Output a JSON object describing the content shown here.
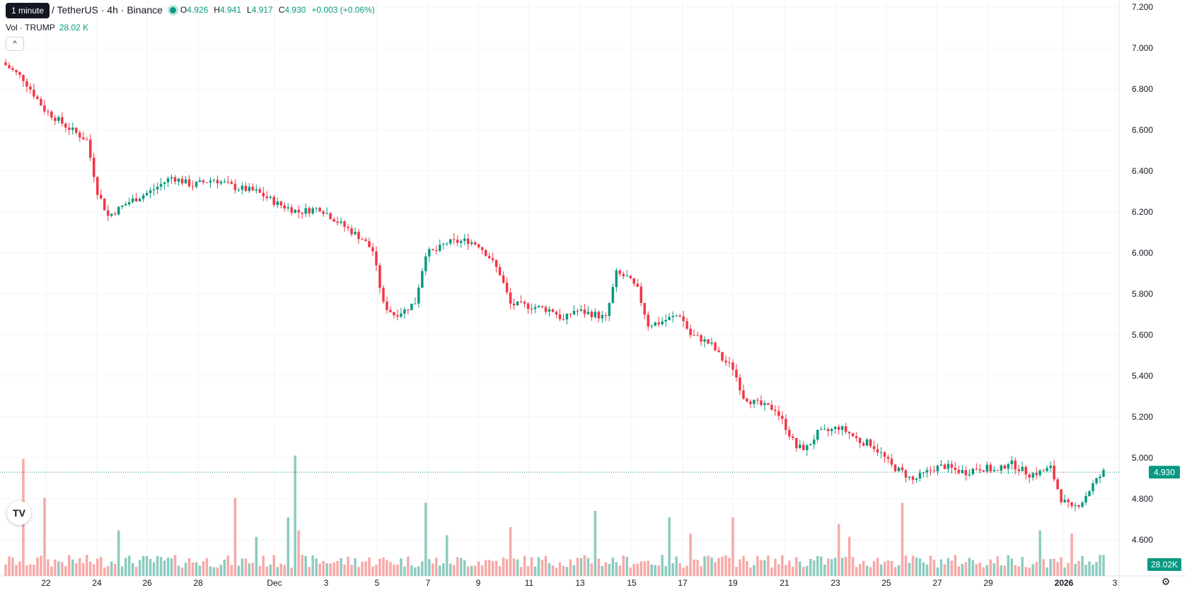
{
  "legend": {
    "symbol_visible": "P / TetherUS · 4h · Binance",
    "open_label": "O",
    "open": "4.926",
    "high_label": "H",
    "high": "4.941",
    "low_label": "L",
    "low": "4.917",
    "close_label": "C",
    "close": "4.930",
    "change": "+0.003 (+0.06%)"
  },
  "tooltip": "1 minute",
  "volume_legend": {
    "label": "Vol · TRUMP",
    "value": "28.02 K"
  },
  "collapse_icon": "chevron-up-icon",
  "logo": "TV",
  "settings_icon": "gear-icon",
  "colors": {
    "up": "#089981",
    "down": "#f23645",
    "up_vol": "#8ccbc0",
    "down_vol": "#f7a9a7",
    "grid": "#f0f3fa"
  },
  "chart_data": {
    "type": "candlestick",
    "y_ticks": [
      "7.200",
      "7.000",
      "6.800",
      "6.600",
      "6.400",
      "6.200",
      "6.000",
      "5.800",
      "5.600",
      "5.400",
      "5.200",
      "5.000",
      "4.800",
      "4.600"
    ],
    "y_range": [
      4.5,
      7.2
    ],
    "x_ticks": [
      "22",
      "24",
      "26",
      "28",
      "Dec",
      "3",
      "5",
      "7",
      "9",
      "11",
      "13",
      "15",
      "17",
      "19",
      "21",
      "23",
      "25",
      "27",
      "29",
      "2026",
      "3"
    ],
    "last_price_label": "4.930",
    "volume_label": "28.02K",
    "path": [
      [
        0,
        6.93
      ],
      [
        2,
        6.85
      ],
      [
        4,
        6.7
      ],
      [
        6,
        6.62
      ],
      [
        8,
        6.55
      ],
      [
        9,
        6.3
      ],
      [
        10,
        6.18
      ],
      [
        12,
        6.25
      ],
      [
        14,
        6.3
      ],
      [
        16,
        6.37
      ],
      [
        18,
        6.33
      ],
      [
        20,
        6.36
      ],
      [
        22,
        6.32
      ],
      [
        24,
        6.3
      ],
      [
        26,
        6.24
      ],
      [
        28,
        6.2
      ],
      [
        30,
        6.22
      ],
      [
        32,
        6.14
      ],
      [
        34,
        6.07
      ],
      [
        35,
        6.01
      ],
      [
        36,
        5.75
      ],
      [
        37,
        5.7
      ],
      [
        38,
        5.72
      ],
      [
        39,
        5.76
      ],
      [
        40,
        6.0
      ],
      [
        41,
        6.01
      ],
      [
        42,
        6.05
      ],
      [
        44,
        6.06
      ],
      [
        45,
        6.04
      ],
      [
        46,
        5.98
      ],
      [
        47,
        5.9
      ],
      [
        48,
        5.75
      ],
      [
        50,
        5.74
      ],
      [
        52,
        5.72
      ],
      [
        53,
        5.67
      ],
      [
        54,
        5.72
      ],
      [
        56,
        5.7
      ],
      [
        57,
        5.68
      ],
      [
        58,
        5.9
      ],
      [
        59,
        5.88
      ],
      [
        60,
        5.82
      ],
      [
        61,
        5.65
      ],
      [
        62,
        5.66
      ],
      [
        64,
        5.7
      ],
      [
        65,
        5.6
      ],
      [
        66,
        5.58
      ],
      [
        67,
        5.55
      ],
      [
        68,
        5.48
      ],
      [
        69,
        5.44
      ],
      [
        70,
        5.3
      ],
      [
        71,
        5.27
      ],
      [
        72,
        5.25
      ],
      [
        73,
        5.24
      ],
      [
        74,
        5.15
      ],
      [
        75,
        5.05
      ],
      [
        76,
        5.05
      ],
      [
        77,
        5.12
      ],
      [
        78,
        5.13
      ],
      [
        79,
        5.15
      ],
      [
        80,
        5.12
      ],
      [
        81,
        5.08
      ],
      [
        82,
        5.07
      ],
      [
        83,
        5.02
      ],
      [
        84,
        4.96
      ],
      [
        85,
        4.93
      ],
      [
        86,
        4.89
      ],
      [
        87,
        4.92
      ],
      [
        88,
        4.95
      ],
      [
        89,
        4.96
      ],
      [
        90,
        4.94
      ],
      [
        91,
        4.93
      ],
      [
        92,
        4.95
      ],
      [
        93,
        4.95
      ],
      [
        94,
        4.93
      ],
      [
        95,
        4.98
      ],
      [
        96,
        4.95
      ],
      [
        97,
        4.92
      ],
      [
        98,
        4.93
      ],
      [
        99,
        4.95
      ],
      [
        100,
        4.8
      ],
      [
        101,
        4.75
      ],
      [
        102,
        4.79
      ],
      [
        103,
        4.87
      ],
      [
        104,
        4.93
      ]
    ],
    "span_days": 104,
    "volume_spikes": [
      [
        2,
        0.72
      ],
      [
        4,
        0.48
      ],
      [
        11,
        0.28
      ],
      [
        22,
        0.48
      ],
      [
        24,
        0.24
      ],
      [
        27,
        0.36
      ],
      [
        27.6,
        0.74
      ],
      [
        28,
        0.28
      ],
      [
        40,
        0.45
      ],
      [
        42,
        0.25
      ],
      [
        48,
        0.3
      ],
      [
        56,
        0.4
      ],
      [
        63,
        0.36
      ],
      [
        65,
        0.26
      ],
      [
        69,
        0.36
      ],
      [
        79,
        0.32
      ],
      [
        80,
        0.24
      ],
      [
        85,
        0.45
      ],
      [
        98,
        0.28
      ],
      [
        101,
        0.26
      ]
    ]
  }
}
